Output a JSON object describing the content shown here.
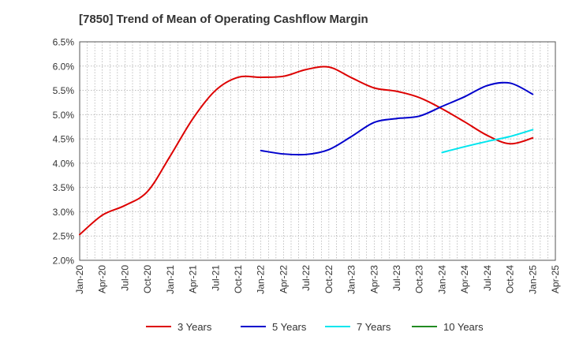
{
  "chart_data": {
    "type": "line",
    "title": "[7850]  Trend of Mean of Operating Cashflow Margin",
    "xlabel": "",
    "ylabel": "",
    "ylim": [
      2.0,
      6.5
    ],
    "y_ticks": [
      "2.0%",
      "2.5%",
      "3.0%",
      "3.5%",
      "4.0%",
      "4.5%",
      "5.0%",
      "5.5%",
      "6.0%",
      "6.5%"
    ],
    "x_ticks": [
      "Jan-20",
      "Apr-20",
      "Jul-20",
      "Oct-20",
      "Jan-21",
      "Apr-21",
      "Jul-21",
      "Oct-21",
      "Jan-22",
      "Apr-22",
      "Jul-22",
      "Oct-22",
      "Jan-23",
      "Apr-23",
      "Jul-23",
      "Oct-23",
      "Jan-24",
      "Apr-24",
      "Jul-24",
      "Oct-24",
      "Jan-25",
      "Apr-25"
    ],
    "grid": true,
    "legend_position": "bottom",
    "series": [
      {
        "name": "3 Years",
        "color": "#dd0000",
        "points": [
          [
            "Jan-20",
            2.53
          ],
          [
            "Apr-20",
            2.93
          ],
          [
            "Jul-20",
            3.13
          ],
          [
            "Oct-20",
            3.42
          ],
          [
            "Jan-21",
            4.15
          ],
          [
            "Apr-21",
            4.92
          ],
          [
            "Jul-21",
            5.5
          ],
          [
            "Oct-21",
            5.77
          ],
          [
            "Jan-22",
            5.77
          ],
          [
            "Apr-22",
            5.79
          ],
          [
            "Jul-22",
            5.93
          ],
          [
            "Oct-22",
            5.98
          ],
          [
            "Jan-23",
            5.76
          ],
          [
            "Apr-23",
            5.55
          ],
          [
            "Jul-23",
            5.48
          ],
          [
            "Oct-23",
            5.35
          ],
          [
            "Jan-24",
            5.12
          ],
          [
            "Apr-24",
            4.85
          ],
          [
            "Jul-24",
            4.57
          ],
          [
            "Oct-24",
            4.4
          ],
          [
            "Jan-25",
            4.52
          ]
        ]
      },
      {
        "name": "5 Years",
        "color": "#0000cc",
        "points": [
          [
            "Jan-22",
            4.26
          ],
          [
            "Apr-22",
            4.19
          ],
          [
            "Jul-22",
            4.18
          ],
          [
            "Oct-22",
            4.28
          ],
          [
            "Jan-23",
            4.55
          ],
          [
            "Apr-23",
            4.84
          ],
          [
            "Jul-23",
            4.92
          ],
          [
            "Oct-23",
            4.97
          ],
          [
            "Jan-24",
            5.17
          ],
          [
            "Apr-24",
            5.37
          ],
          [
            "Jul-24",
            5.6
          ],
          [
            "Oct-24",
            5.65
          ],
          [
            "Jan-25",
            5.42
          ]
        ]
      },
      {
        "name": "7 Years",
        "color": "#00e5ee",
        "points": [
          [
            "Jan-24",
            4.22
          ],
          [
            "Apr-24",
            4.34
          ],
          [
            "Jul-24",
            4.45
          ],
          [
            "Oct-24",
            4.55
          ],
          [
            "Jan-25",
            4.69
          ]
        ]
      },
      {
        "name": "10 Years",
        "color": "#228b22",
        "points": []
      }
    ]
  }
}
